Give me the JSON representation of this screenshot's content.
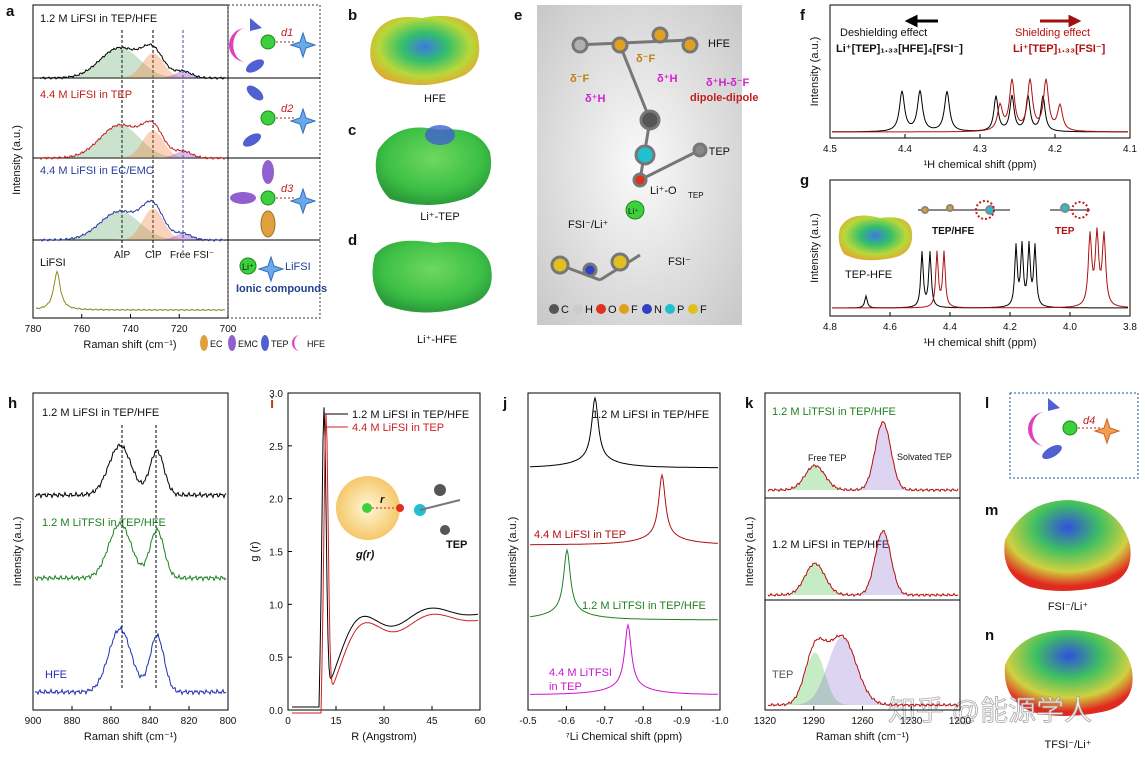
{
  "a": {
    "letter": "a",
    "traces": [
      "1.2 M LiFSI in TEP/HFE",
      "4.4 M LiFSI in TEP",
      "4.4 M LiFSI in EC/EMC",
      "LiFSI"
    ],
    "peaks": [
      "AIP",
      "CIP",
      "Free FSI⁻"
    ],
    "ylabel": "Intensity (a.u.)",
    "xlabel": "Raman shift (cm⁻¹)",
    "xlim": [
      780,
      700
    ],
    "xticks": [
      780,
      760,
      740,
      720,
      700
    ],
    "distances": [
      "d1",
      "d2",
      "d3"
    ],
    "ion": "Li⁺",
    "salt": "LiFSI",
    "ionic": "Ionic compounds",
    "legend": [
      "EC",
      "EMC",
      "TEP",
      "HFE"
    ]
  },
  "b": {
    "letter": "b",
    "caption": "HFE"
  },
  "c": {
    "letter": "c",
    "caption": "Li⁺-TEP"
  },
  "d": {
    "letter": "d",
    "caption": "Li⁺-HFE"
  },
  "e": {
    "letter": "e",
    "labels": [
      "HFE",
      "TEP",
      "δ⁻F",
      "δ⁻F",
      "δ⁺H",
      "δ⁺H",
      "δ⁺H-δ⁻F",
      "dipole-dipole",
      "Li⁺-O",
      "TEP",
      "FSI⁻/Li⁺",
      "Li⁺",
      "FSI⁻"
    ],
    "legend": [
      "C",
      "H",
      "O",
      "F",
      "N",
      "P",
      "F"
    ]
  },
  "f": {
    "letter": "f",
    "xlim": [
      4.5,
      4.1
    ],
    "xticks": [
      4.5,
      4.4,
      4.3,
      4.2,
      4.1
    ],
    "xlabel": "¹H chemical shift (ppm)",
    "ylabel": "Intensity (a.u.)",
    "left_effect": "Deshielding effect",
    "left_formula": "Li⁺[TEP]₁.₃₃[HFE]₄[FSI⁻]",
    "right_effect": "Shielding effect",
    "right_formula": "Li⁺[TEP]₁.₃₃[FSI⁻]"
  },
  "g": {
    "letter": "g",
    "xlim": [
      4.8,
      3.8
    ],
    "xticks": [
      4.8,
      4.6,
      4.4,
      4.2,
      {
        "value": 4.0,
        "label": "4.0"
      },
      3.8
    ],
    "xlabel": "¹H chemical shift (ppm)",
    "ylabel": "Intensity (a.u.)",
    "labels": [
      "TEP-HFE",
      "TEP/HFE",
      "TEP"
    ]
  },
  "h": {
    "letter": "h",
    "xlim": [
      900,
      800
    ],
    "xticks": [
      900,
      880,
      860,
      840,
      820,
      800
    ],
    "xlabel": "Raman shift (cm⁻¹)",
    "ylabel": "Intensity (a.u.)",
    "traces": [
      "1.2 M LiFSI in TEP/HFE",
      "1.2 M LiTFSI in TEP/HFE",
      "HFE"
    ]
  },
  "i": {
    "letter": "i",
    "xlim": [
      0,
      60
    ],
    "xticks": [
      0,
      15,
      30,
      45,
      60
    ],
    "ylim": [
      0,
      3
    ],
    "yticks": [
      {
        "value": 0,
        "label": "0.0"
      },
      0.5,
      {
        "value": 1,
        "label": "1.0"
      },
      1.5,
      {
        "value": 2,
        "label": "2.0"
      },
      2.5,
      {
        "value": 3,
        "label": "3.0"
      }
    ],
    "xlabel": "R (Angstrom)",
    "ylabel": "g (r)",
    "legend": [
      "1.2 M LiFSI in TEP/HFE",
      "4.4 M LiFSI in TEP"
    ],
    "r": "r",
    "gr": "g(r)",
    "mol": "TEP"
  },
  "j": {
    "letter": "j",
    "xlim": [
      -0.5,
      -1.0
    ],
    "xticks": [
      -0.5,
      -0.6,
      -0.7,
      -0.8,
      -0.9,
      {
        "value": -1.0,
        "label": "-1.0"
      }
    ],
    "xlabel": "⁷Li Chemical shift (ppm)",
    "ylabel": "Intensity (a.u.)",
    "traces": [
      "1.2 M LiFSI in TEP/HFE",
      "4.4 M LiFSI in TEP",
      "1.2 M LiTFSI in TEP/HFE",
      "4.4 M LiTFSI",
      "in TEP"
    ]
  },
  "k": {
    "letter": "k",
    "xlim": [
      1320,
      1200
    ],
    "xticks": [
      1320,
      1290,
      1260,
      1230,
      1200
    ],
    "xlabel": "Raman shift (cm⁻¹)",
    "ylabel": "Intensity (a.u.)",
    "traces": [
      "1.2 M LiTFSI in TEP/HFE",
      "1.2 M LiFSI in TEP/HFE",
      "TEP"
    ],
    "free": "Free TEP",
    "solvated": "Solvated TEP"
  },
  "l": {
    "letter": "l",
    "distance": "d4"
  },
  "m": {
    "letter": "m",
    "caption": "FSI⁻/Li⁺"
  },
  "n": {
    "letter": "n",
    "caption": "TFSI⁻/Li⁺"
  },
  "watermark": "知乎 @能源学人"
}
